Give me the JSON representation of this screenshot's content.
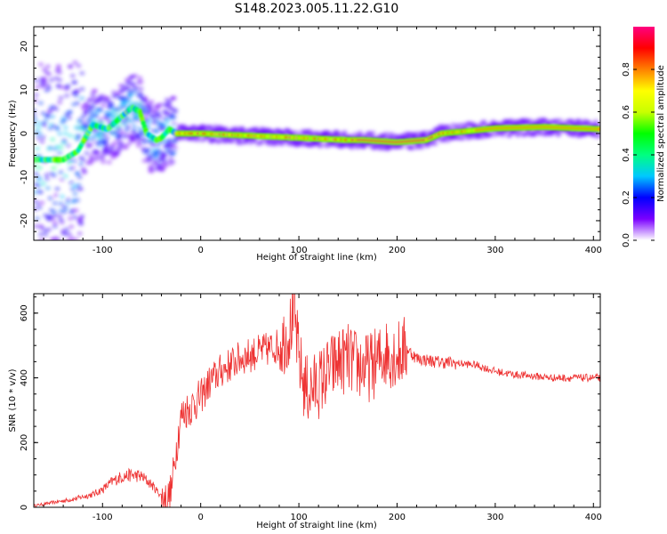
{
  "figure": {
    "title": "S148.2023.005.11.22.G10"
  },
  "chart_data": [
    {
      "type": "heatmap",
      "title": "",
      "xlabel": "Height of straight line (km)",
      "ylabel": "Frequency (Hz)",
      "xlim": [
        -170,
        407
      ],
      "ylim": [
        -24.5,
        24.5
      ],
      "xticks": [
        -100,
        0,
        100,
        200,
        300,
        400
      ],
      "yticks": [
        -20,
        -10,
        0,
        10,
        20
      ],
      "colorbar": {
        "label": "Normalized spectral amplitude",
        "range": [
          0,
          1
        ],
        "ticks": [
          0.0,
          0.2,
          0.4,
          0.6,
          0.8
        ],
        "colormap": [
          "#ffffff",
          "#7a00ff",
          "#0000ff",
          "#00c8ff",
          "#00ff80",
          "#00ff00",
          "#c8ff00",
          "#ffff00",
          "#ff8000",
          "#ff0000",
          "#ff0080"
        ]
      },
      "ridge": {
        "x": [
          -160,
          -140,
          -125,
          -110,
          -95,
          -80,
          -70,
          -62,
          -55,
          -45,
          -40,
          -32,
          -25,
          0,
          50,
          100,
          150,
          165,
          200,
          230,
          245,
          270,
          300,
          350,
          407
        ],
        "y": [
          -6,
          -6,
          -4,
          2,
          1,
          4,
          6,
          5,
          0,
          -1.5,
          -1,
          1,
          0,
          0,
          -0.5,
          -1,
          -1.5,
          -1.5,
          -2,
          -1.5,
          0,
          0.5,
          1.2,
          1.5,
          1
        ]
      }
    },
    {
      "type": "line",
      "title": "",
      "xlabel": "Height of straight line (km)",
      "ylabel": "SNR (10 * v/v)",
      "xlim": [
        -170,
        407
      ],
      "ylim": [
        0,
        660
      ],
      "xticks": [
        -100,
        0,
        100,
        200,
        300,
        400
      ],
      "yticks": [
        0,
        200,
        400,
        600
      ],
      "series": [
        {
          "color": "#ee3333",
          "x": [
            -170,
            -150,
            -130,
            -110,
            -100,
            -90,
            -80,
            -70,
            -60,
            -50,
            -40,
            -35,
            -30,
            -25,
            -20,
            -15,
            -10,
            0,
            10,
            20,
            30,
            40,
            50,
            60,
            70,
            80,
            90,
            95,
            100,
            105,
            110,
            120,
            130,
            140,
            150,
            160,
            170,
            180,
            190,
            200,
            210,
            220,
            240,
            260,
            280,
            300,
            320,
            340,
            360,
            380,
            407
          ],
          "y": [
            5,
            15,
            25,
            40,
            55,
            80,
            95,
            100,
            95,
            70,
            35,
            20,
            50,
            180,
            280,
            300,
            310,
            340,
            390,
            420,
            440,
            460,
            470,
            480,
            490,
            500,
            540,
            600,
            460,
            380,
            360,
            380,
            420,
            450,
            460,
            440,
            430,
            450,
            480,
            470,
            490,
            460,
            450,
            445,
            440,
            420,
            410,
            405,
            400,
            400,
            400
          ]
        }
      ]
    }
  ]
}
